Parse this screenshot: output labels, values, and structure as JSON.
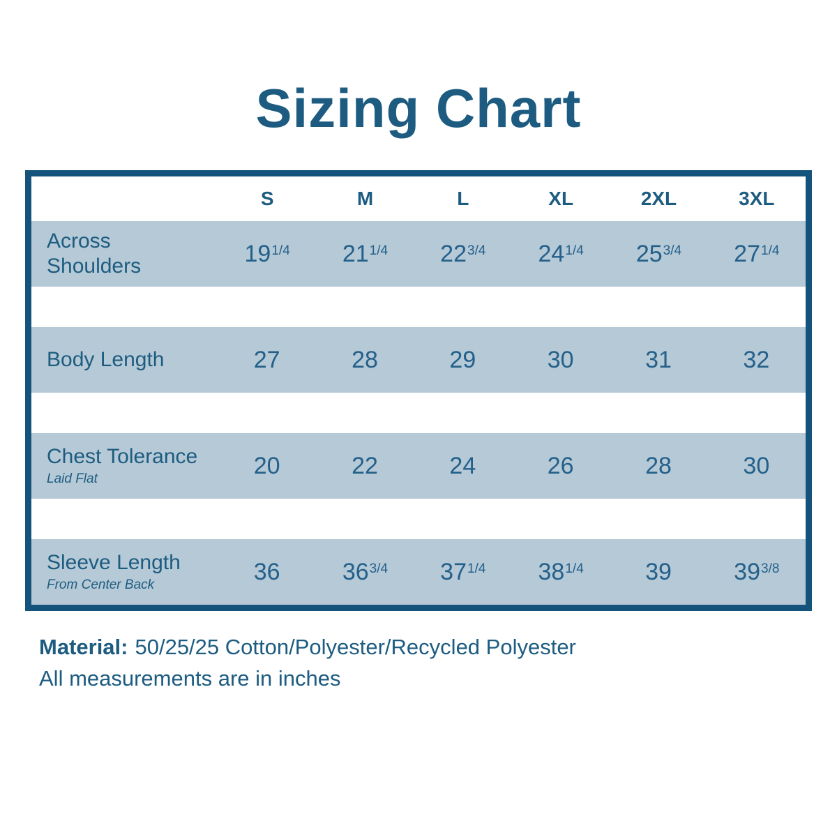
{
  "title": "Sizing Chart",
  "table": {
    "size_headers": [
      "S",
      "M",
      "L",
      "XL",
      "2XL",
      "3XL"
    ],
    "rows": [
      {
        "label": "Across Shoulders",
        "sublabel": null,
        "values": [
          {
            "whole": "19",
            "frac": "1/4"
          },
          {
            "whole": "21",
            "frac": "1/4"
          },
          {
            "whole": "22",
            "frac": "3/4"
          },
          {
            "whole": "24",
            "frac": "1/4"
          },
          {
            "whole": "25",
            "frac": "3/4"
          },
          {
            "whole": "27",
            "frac": "1/4"
          }
        ]
      },
      {
        "label": "Body Length",
        "sublabel": null,
        "values": [
          {
            "whole": "27"
          },
          {
            "whole": "28"
          },
          {
            "whole": "29"
          },
          {
            "whole": "30"
          },
          {
            "whole": "31"
          },
          {
            "whole": "32"
          }
        ]
      },
      {
        "label": "Chest Tolerance",
        "sublabel": "Laid Flat",
        "values": [
          {
            "whole": "20"
          },
          {
            "whole": "22"
          },
          {
            "whole": "24"
          },
          {
            "whole": "26"
          },
          {
            "whole": "28"
          },
          {
            "whole": "30"
          }
        ]
      },
      {
        "label": "Sleeve Length",
        "sublabel": "From Center Back",
        "values": [
          {
            "whole": "36"
          },
          {
            "whole": "36",
            "frac": "3/4"
          },
          {
            "whole": "37",
            "frac": "1/4"
          },
          {
            "whole": "38",
            "frac": "1/4"
          },
          {
            "whole": "39"
          },
          {
            "whole": "39",
            "frac": "3/8"
          }
        ]
      }
    ]
  },
  "footer": {
    "material_label": "Material:",
    "material_value": "50/25/25 Cotton/Polyester/Recycled Polyester",
    "note": "All measurements are in inches"
  },
  "colors": {
    "text_dark_teal": "#1d5c80",
    "border_teal": "#14537b",
    "band_blue_gray": "#b5c9d6",
    "background": "#ffffff"
  },
  "chart_data": {
    "type": "table",
    "title": "Sizing Chart",
    "columns": [
      "S",
      "M",
      "L",
      "XL",
      "2XL",
      "3XL"
    ],
    "rows": [
      {
        "label": "Across Shoulders",
        "values": [
          19.25,
          21.25,
          22.75,
          24.25,
          25.75,
          27.25
        ]
      },
      {
        "label": "Body Length",
        "values": [
          27,
          28,
          29,
          30,
          31,
          32
        ]
      },
      {
        "label": "Chest Tolerance (Laid Flat)",
        "values": [
          20,
          22,
          24,
          26,
          28,
          30
        ]
      },
      {
        "label": "Sleeve Length (From Center Back)",
        "values": [
          36,
          36.75,
          37.25,
          38.25,
          39,
          39.375
        ]
      }
    ],
    "units": "inches",
    "notes": [
      "Material: 50/25/25 Cotton/Polyester/Recycled Polyester",
      "All measurements are in inches"
    ]
  }
}
